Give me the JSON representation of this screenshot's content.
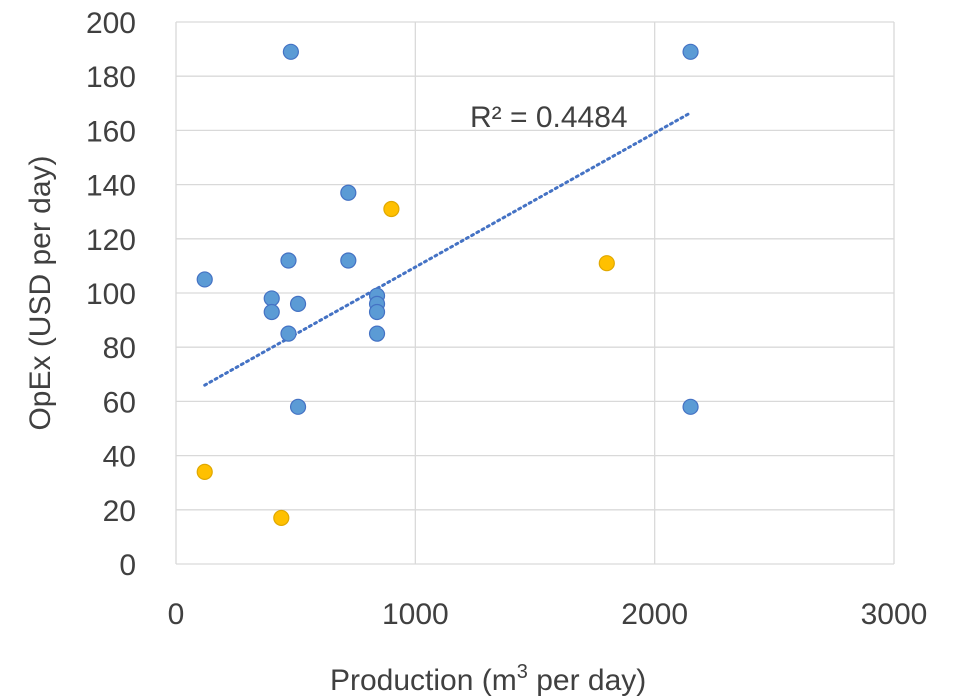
{
  "chart_data": {
    "type": "scatter",
    "title": "",
    "xlabel": "Production (m",
    "xlabel_sup": "3",
    "xlabel_suffix": " per day)",
    "ylabel": "OpEx (USD per day)",
    "xlim": [
      0,
      3000
    ],
    "ylim": [
      0,
      200
    ],
    "x_ticks": [
      0,
      1000,
      2000,
      3000
    ],
    "y_ticks": [
      0,
      20,
      40,
      60,
      80,
      100,
      120,
      140,
      160,
      180,
      200
    ],
    "grid": true,
    "legend": "none",
    "series": [
      {
        "color": "#5b9bd5",
        "edge": "#4472c4",
        "points": [
          {
            "x": 120,
            "y": 105
          },
          {
            "x": 400,
            "y": 98
          },
          {
            "x": 400,
            "y": 93
          },
          {
            "x": 470,
            "y": 85
          },
          {
            "x": 470,
            "y": 112
          },
          {
            "x": 480,
            "y": 189
          },
          {
            "x": 510,
            "y": 96
          },
          {
            "x": 510,
            "y": 58
          },
          {
            "x": 720,
            "y": 137
          },
          {
            "x": 720,
            "y": 112
          },
          {
            "x": 840,
            "y": 99
          },
          {
            "x": 840,
            "y": 96
          },
          {
            "x": 840,
            "y": 93
          },
          {
            "x": 840,
            "y": 85
          },
          {
            "x": 2150,
            "y": 189
          },
          {
            "x": 2150,
            "y": 58
          }
        ]
      },
      {
        "color": "#ffc000",
        "edge": "#e0a800",
        "points": [
          {
            "x": 120,
            "y": 34
          },
          {
            "x": 440,
            "y": 17
          },
          {
            "x": 900,
            "y": 131
          },
          {
            "x": 1800,
            "y": 111
          }
        ]
      }
    ],
    "trendline": {
      "type": "linear",
      "color": "#4472c4",
      "style": "dotted",
      "x_start": 120,
      "y_start": 66,
      "x_end": 2140,
      "y_end": 166,
      "label": "R² = 0.4484"
    }
  }
}
